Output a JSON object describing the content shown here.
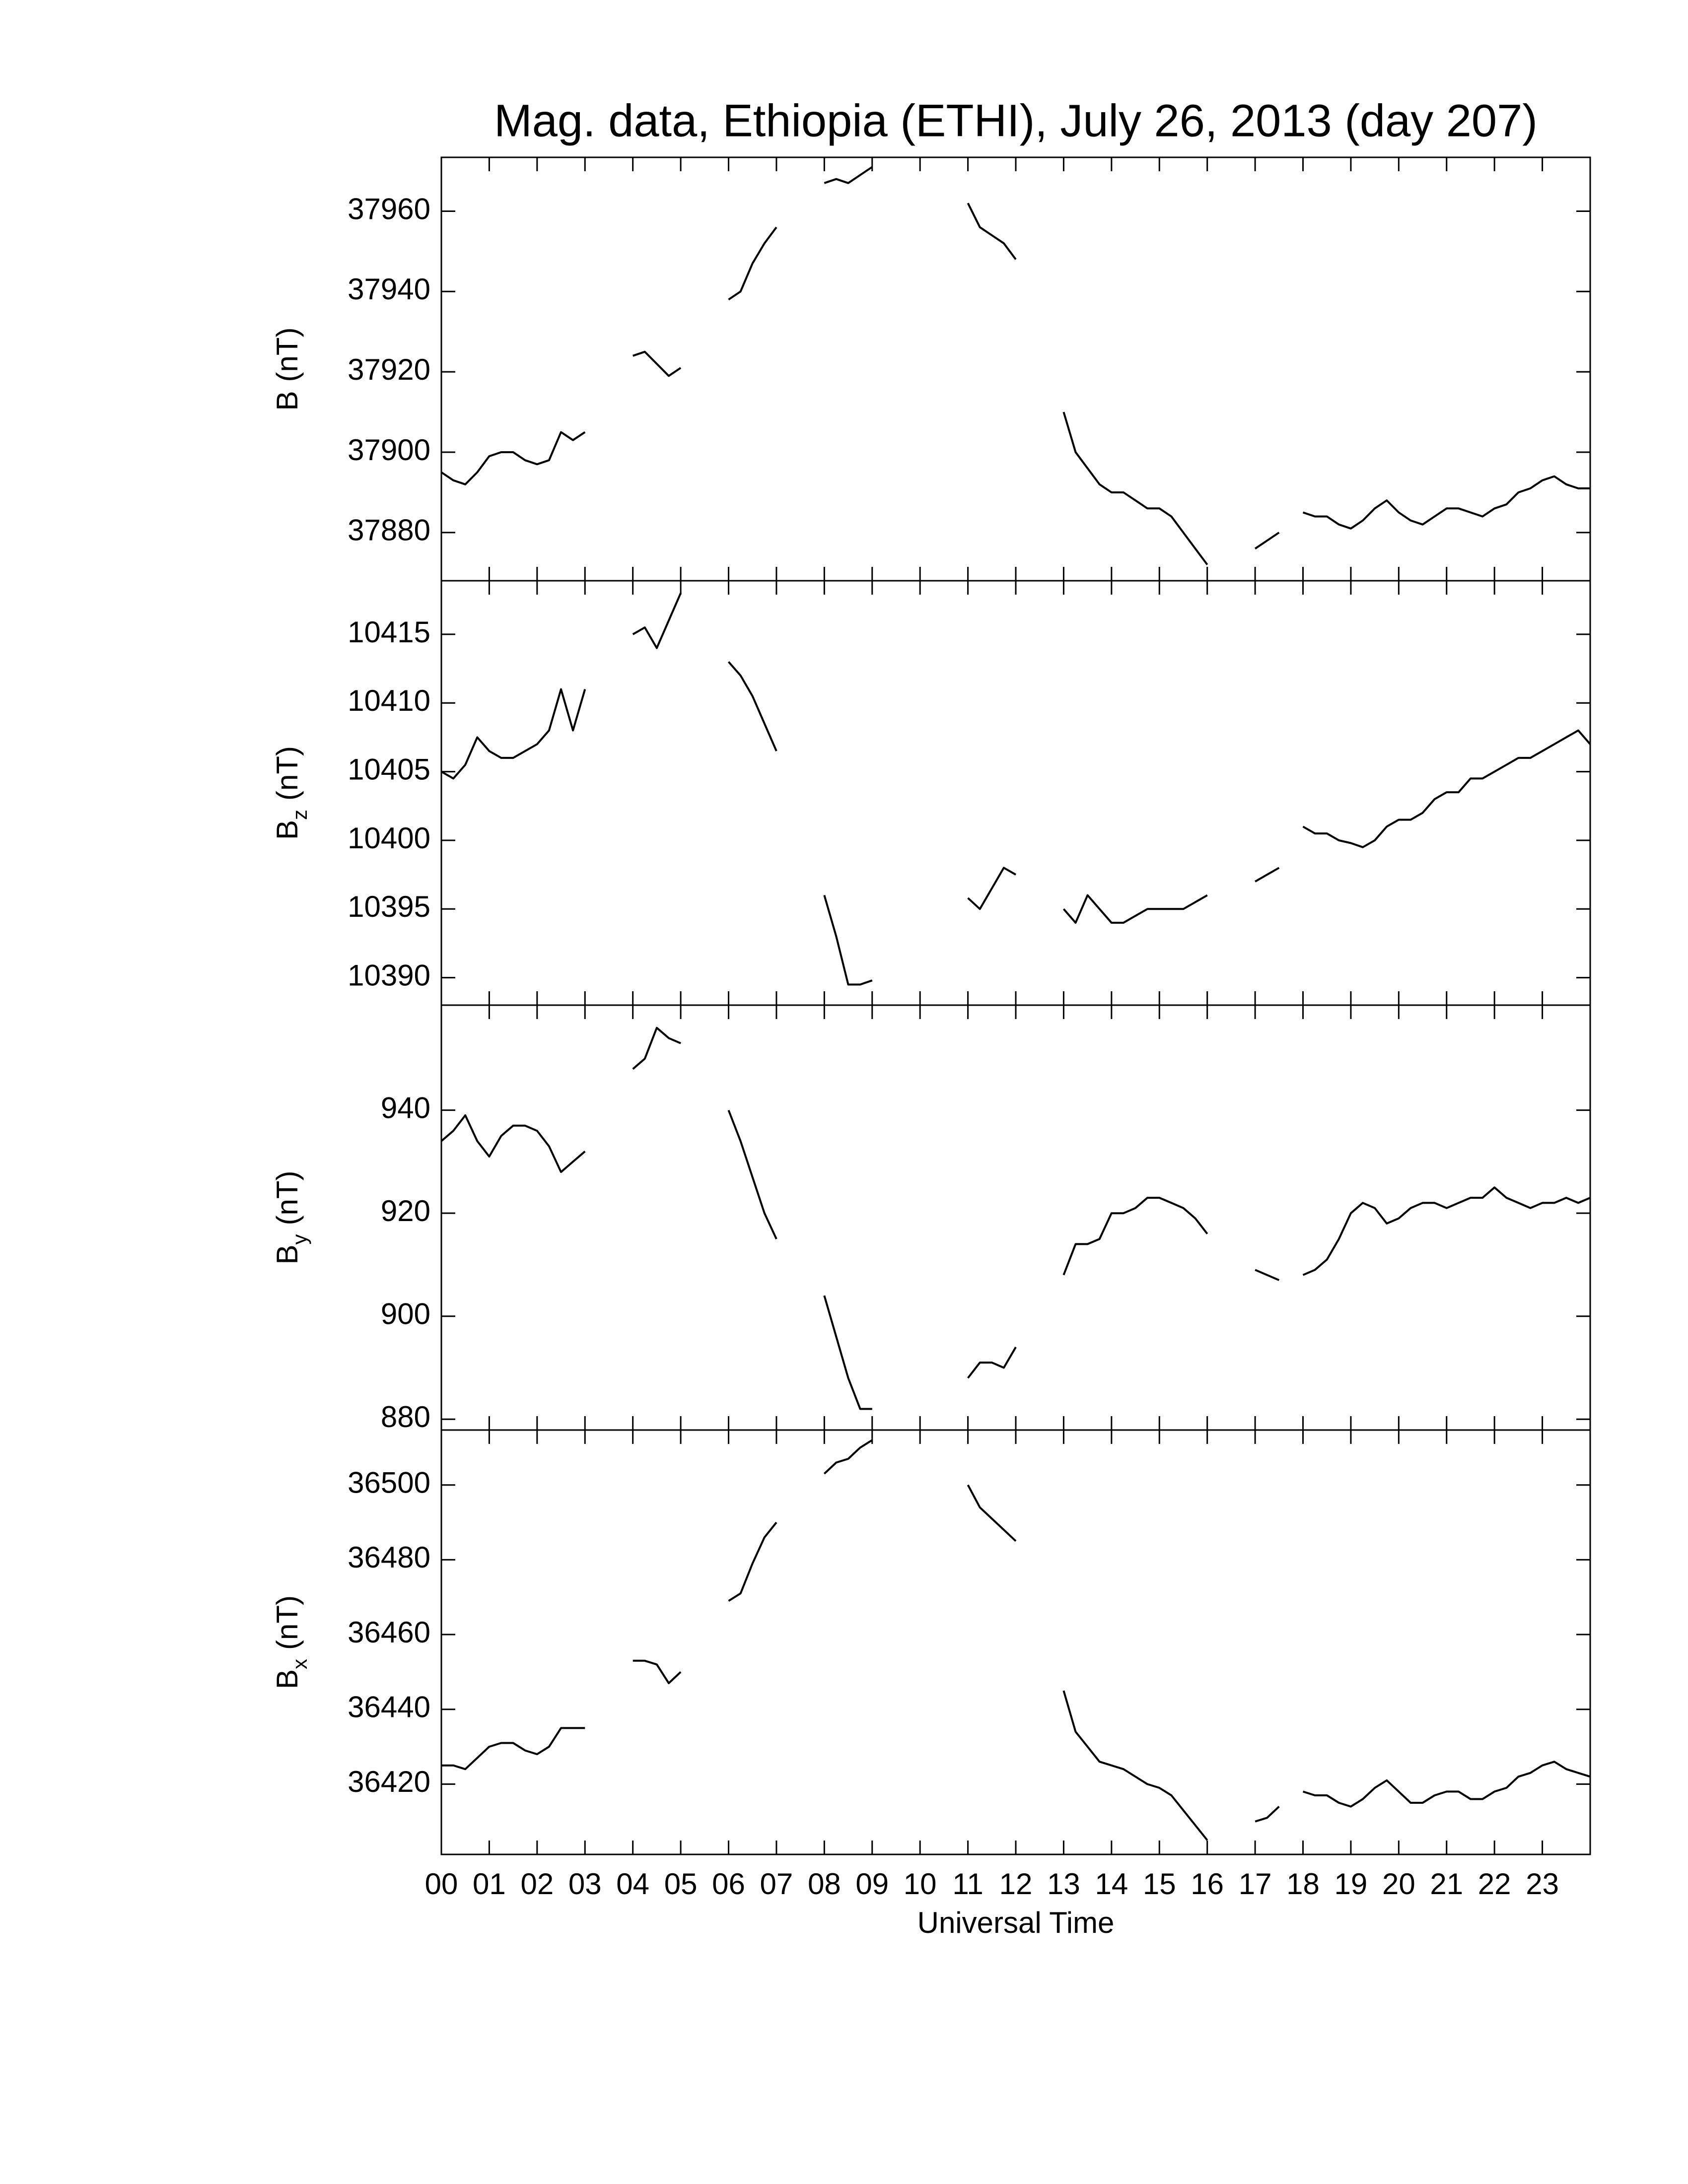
{
  "title": "Mag. data, Ethiopia (ETHI), July 26, 2013 (day 207)",
  "xlabel": "Universal Time",
  "chart_data": [
    {
      "type": "line",
      "ylabel": "B",
      "ylabel_unit": "(nT)",
      "color": "#000000",
      "xlim": [
        0,
        24
      ],
      "ylim": [
        37868,
        37973.4
      ],
      "yticks": [
        37880,
        37900,
        37920,
        37940,
        37960
      ],
      "xticks": [
        0,
        1,
        2,
        3,
        4,
        5,
        6,
        7,
        8,
        9,
        10,
        11,
        12,
        13,
        14,
        15,
        16,
        17,
        18,
        19,
        20,
        21,
        22,
        23
      ],
      "x": [
        0,
        0.25,
        0.5,
        0.75,
        1,
        1.25,
        1.5,
        1.75,
        2,
        2.25,
        2.5,
        2.75,
        3,
        3.25,
        3.5,
        3.75,
        4,
        4.25,
        4.5,
        4.75,
        5,
        5.25,
        5.5,
        5.75,
        6,
        6.25,
        6.5,
        6.75,
        7,
        7.25,
        7.5,
        7.75,
        8,
        8.25,
        8.5,
        8.75,
        9,
        9.25,
        9.5,
        9.75,
        10,
        10.25,
        10.5,
        10.75,
        11,
        11.25,
        11.5,
        11.75,
        12,
        12.25,
        12.5,
        12.75,
        13,
        13.25,
        13.5,
        13.75,
        14,
        14.25,
        14.5,
        14.75,
        15,
        15.25,
        15.5,
        15.75,
        16,
        16.25,
        16.5,
        16.75,
        17,
        17.25,
        17.5,
        17.75,
        18,
        18.25,
        18.5,
        18.75,
        19,
        19.25,
        19.5,
        19.75,
        20,
        20.25,
        20.5,
        20.75,
        21,
        21.25,
        21.5,
        21.75,
        22,
        22.25,
        22.5,
        22.75,
        23,
        23.25,
        23.5,
        23.75,
        24
      ],
      "values": [
        37895,
        37893,
        37892,
        37895,
        37899,
        37900,
        37900,
        37898,
        37897,
        37898,
        37905,
        37903,
        37905,
        null,
        null,
        null,
        37924,
        37925,
        37922,
        37919,
        37921,
        null,
        null,
        null,
        37938,
        37940,
        37947,
        37952,
        37956,
        null,
        null,
        null,
        37967,
        37968,
        37967,
        37969,
        37971,
        null,
        null,
        null,
        null,
        null,
        null,
        null,
        37962,
        37956,
        37954,
        37952,
        37948,
        null,
        null,
        null,
        37910,
        37900,
        37896,
        37892,
        37890,
        37890,
        37888,
        37886,
        37886,
        37884,
        37880,
        37876,
        37872,
        null,
        null,
        null,
        37876,
        37878,
        37880,
        null,
        37885,
        37884,
        37884,
        37882,
        37881,
        37883,
        37886,
        37888,
        37885,
        37883,
        37882,
        37884,
        37886,
        37886,
        37885,
        37884,
        37886,
        37887,
        37890,
        37891,
        37893,
        37894,
        37892,
        37891,
        37891
      ]
    },
    {
      "type": "line",
      "ylabel": "B",
      "ylabel_sub": "z",
      "ylabel_unit": "(nT)",
      "color": "#000000",
      "xlim": [
        0,
        24
      ],
      "ylim": [
        10388,
        10418.9
      ],
      "yticks": [
        10390,
        10395,
        10400,
        10405,
        10410,
        10415
      ],
      "xticks": [
        0,
        1,
        2,
        3,
        4,
        5,
        6,
        7,
        8,
        9,
        10,
        11,
        12,
        13,
        14,
        15,
        16,
        17,
        18,
        19,
        20,
        21,
        22,
        23
      ],
      "x": [
        0,
        0.25,
        0.5,
        0.75,
        1,
        1.25,
        1.5,
        1.75,
        2,
        2.25,
        2.5,
        2.75,
        3,
        3.25,
        3.5,
        3.75,
        4,
        4.25,
        4.5,
        4.75,
        5,
        5.25,
        5.5,
        5.75,
        6,
        6.25,
        6.5,
        6.75,
        7,
        7.25,
        7.5,
        7.75,
        8,
        8.25,
        8.5,
        8.75,
        9,
        9.25,
        9.5,
        9.75,
        10,
        10.25,
        10.5,
        10.75,
        11,
        11.25,
        11.5,
        11.75,
        12,
        12.25,
        12.5,
        12.75,
        13,
        13.25,
        13.5,
        13.75,
        14,
        14.25,
        14.5,
        14.75,
        15,
        15.25,
        15.5,
        15.75,
        16,
        16.25,
        16.5,
        16.75,
        17,
        17.25,
        17.5,
        17.75,
        18,
        18.25,
        18.5,
        18.75,
        19,
        19.25,
        19.5,
        19.75,
        20,
        20.25,
        20.5,
        20.75,
        21,
        21.25,
        21.5,
        21.75,
        22,
        22.25,
        22.5,
        22.75,
        23,
        23.25,
        23.5,
        23.75,
        24
      ],
      "values": [
        10405,
        10404.5,
        10405.5,
        10407.5,
        10406.5,
        10406,
        10406,
        10406.5,
        10407,
        10408,
        10411,
        10408,
        10411,
        null,
        null,
        null,
        10415,
        10415.5,
        10414,
        10416,
        10418,
        null,
        null,
        null,
        10413,
        10412,
        10410.5,
        10408.5,
        10406.5,
        null,
        null,
        null,
        10396,
        10393,
        10389.5,
        10389.5,
        10389.8,
        null,
        null,
        null,
        null,
        null,
        null,
        null,
        10395.8,
        10395,
        10396.5,
        10398,
        10397.5,
        null,
        null,
        null,
        10395,
        10394,
        10396,
        10395,
        10394,
        10394,
        10394.5,
        10395,
        10395,
        10395,
        10395,
        10395.5,
        10396,
        null,
        null,
        null,
        10397,
        10397.5,
        10398,
        null,
        10401,
        10400.5,
        10400.5,
        10400,
        10399.8,
        10399.5,
        10400,
        10401,
        10401.5,
        10401.5,
        10402,
        10403,
        10403.5,
        10403.5,
        10404.5,
        10404.5,
        10405,
        10405.5,
        10406,
        10406,
        10406.5,
        10407,
        10407.5,
        10408,
        10407
      ]
    },
    {
      "type": "line",
      "ylabel": "B",
      "ylabel_sub": "y",
      "ylabel_unit": "(nT)",
      "color": "#000000",
      "xlim": [
        0,
        24
      ],
      "ylim": [
        877.9,
        960.4
      ],
      "yticks": [
        880,
        900,
        920,
        940
      ],
      "xticks": [
        0,
        1,
        2,
        3,
        4,
        5,
        6,
        7,
        8,
        9,
        10,
        11,
        12,
        13,
        14,
        15,
        16,
        17,
        18,
        19,
        20,
        21,
        22,
        23
      ],
      "x": [
        0,
        0.25,
        0.5,
        0.75,
        1,
        1.25,
        1.5,
        1.75,
        2,
        2.25,
        2.5,
        2.75,
        3,
        3.25,
        3.5,
        3.75,
        4,
        4.25,
        4.5,
        4.75,
        5,
        5.25,
        5.5,
        5.75,
        6,
        6.25,
        6.5,
        6.75,
        7,
        7.25,
        7.5,
        7.75,
        8,
        8.25,
        8.5,
        8.75,
        9,
        9.25,
        9.5,
        9.75,
        10,
        10.25,
        10.5,
        10.75,
        11,
        11.25,
        11.5,
        11.75,
        12,
        12.25,
        12.5,
        12.75,
        13,
        13.25,
        13.5,
        13.75,
        14,
        14.25,
        14.5,
        14.75,
        15,
        15.25,
        15.5,
        15.75,
        16,
        16.25,
        16.5,
        16.75,
        17,
        17.25,
        17.5,
        17.75,
        18,
        18.25,
        18.5,
        18.75,
        19,
        19.25,
        19.5,
        19.75,
        20,
        20.25,
        20.5,
        20.75,
        21,
        21.25,
        21.5,
        21.75,
        22,
        22.25,
        22.5,
        22.75,
        23,
        23.25,
        23.5,
        23.75,
        24
      ],
      "values": [
        934,
        936,
        939,
        934,
        931,
        935,
        937,
        937,
        936,
        933,
        928,
        930,
        932,
        null,
        null,
        null,
        948,
        950,
        956,
        954,
        953,
        null,
        null,
        null,
        940,
        934,
        927,
        920,
        915,
        null,
        null,
        null,
        904,
        896,
        888,
        882,
        882,
        null,
        null,
        null,
        null,
        null,
        null,
        null,
        888,
        891,
        891,
        890,
        894,
        null,
        null,
        null,
        908,
        914,
        914,
        915,
        920,
        920,
        921,
        923,
        923,
        922,
        921,
        919,
        916,
        null,
        null,
        null,
        909,
        908,
        907,
        null,
        908,
        909,
        911,
        915,
        920,
        922,
        921,
        918,
        919,
        921,
        922,
        922,
        921,
        922,
        923,
        923,
        925,
        923,
        922,
        921,
        922,
        922,
        923,
        922,
        923
      ]
    },
    {
      "type": "line",
      "ylabel": "B",
      "ylabel_sub": "x",
      "ylabel_unit": "(nT)",
      "color": "#000000",
      "xlim": [
        0,
        24
      ],
      "ylim": [
        36401.2,
        36514.7
      ],
      "yticks": [
        36420,
        36440,
        36460,
        36480,
        36500
      ],
      "xticks": [
        {
          "value": 0,
          "label": "00"
        },
        {
          "value": 1,
          "label": "01"
        },
        {
          "value": 2,
          "label": "02"
        },
        {
          "value": 3,
          "label": "03"
        },
        {
          "value": 4,
          "label": "04"
        },
        {
          "value": 5,
          "label": "05"
        },
        {
          "value": 6,
          "label": "06"
        },
        {
          "value": 7,
          "label": "07"
        },
        {
          "value": 8,
          "label": "08"
        },
        {
          "value": 9,
          "label": "09"
        },
        {
          "value": 10,
          "label": "10"
        },
        {
          "value": 11,
          "label": "11"
        },
        {
          "value": 12,
          "label": "12"
        },
        {
          "value": 13,
          "label": "13"
        },
        {
          "value": 14,
          "label": "14"
        },
        {
          "value": 15,
          "label": "15"
        },
        {
          "value": 16,
          "label": "16"
        },
        {
          "value": 17,
          "label": "17"
        },
        {
          "value": 18,
          "label": "18"
        },
        {
          "value": 19,
          "label": "19"
        },
        {
          "value": 20,
          "label": "20"
        },
        {
          "value": 21,
          "label": "21"
        },
        {
          "value": 22,
          "label": "22"
        },
        {
          "value": 23,
          "label": "23"
        }
      ],
      "x": [
        0,
        0.25,
        0.5,
        0.75,
        1,
        1.25,
        1.5,
        1.75,
        2,
        2.25,
        2.5,
        2.75,
        3,
        3.25,
        3.5,
        3.75,
        4,
        4.25,
        4.5,
        4.75,
        5,
        5.25,
        5.5,
        5.75,
        6,
        6.25,
        6.5,
        6.75,
        7,
        7.25,
        7.5,
        7.75,
        8,
        8.25,
        8.5,
        8.75,
        9,
        9.25,
        9.5,
        9.75,
        10,
        10.25,
        10.5,
        10.75,
        11,
        11.25,
        11.5,
        11.75,
        12,
        12.25,
        12.5,
        12.75,
        13,
        13.25,
        13.5,
        13.75,
        14,
        14.25,
        14.5,
        14.75,
        15,
        15.25,
        15.5,
        15.75,
        16,
        16.25,
        16.5,
        16.75,
        17,
        17.25,
        17.5,
        17.75,
        18,
        18.25,
        18.5,
        18.75,
        19,
        19.25,
        19.5,
        19.75,
        20,
        20.25,
        20.5,
        20.75,
        21,
        21.25,
        21.5,
        21.75,
        22,
        22.25,
        22.5,
        22.75,
        23,
        23.25,
        23.5,
        23.75,
        24
      ],
      "values": [
        36425,
        36425,
        36424,
        36427,
        36430,
        36431,
        36431,
        36429,
        36428,
        36430,
        36435,
        36435,
        36435,
        null,
        null,
        null,
        36453,
        36453,
        36452,
        36447,
        36450,
        null,
        null,
        null,
        36469,
        36471,
        36479,
        36486,
        36490,
        null,
        null,
        null,
        36503,
        36506,
        36507,
        36510,
        36512,
        null,
        null,
        null,
        null,
        null,
        null,
        null,
        36500,
        36494,
        36491,
        36488,
        36485,
        null,
        null,
        null,
        36445,
        36434,
        36430,
        36426,
        36425,
        36424,
        36422,
        36420,
        36419,
        36417,
        36413,
        36409,
        36405,
        null,
        null,
        null,
        36410,
        36411,
        36414,
        null,
        36418,
        36417,
        36417,
        36415,
        36414,
        36416,
        36419,
        36421,
        36418,
        36415,
        36415,
        36417,
        36418,
        36418,
        36416,
        36416,
        36418,
        36419,
        36422,
        36423,
        36425,
        36426,
        36424,
        36423,
        36422
      ]
    }
  ]
}
